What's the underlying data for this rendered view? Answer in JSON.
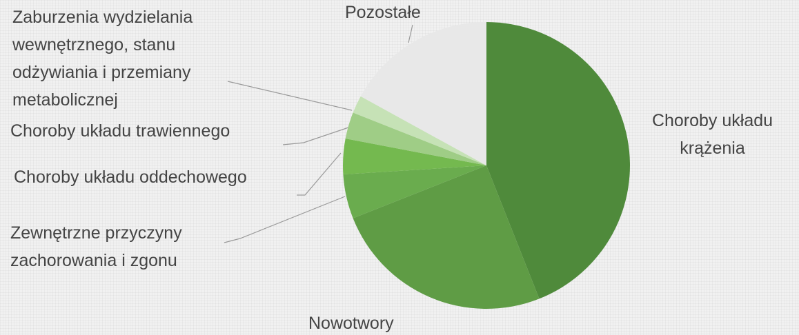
{
  "chart_data": {
    "type": "pie",
    "categories": [
      "Choroby układu krążenia",
      "Nowotwory",
      "Zewnętrzne przyczyny zachorowania i zgonu",
      "Choroby układu oddechowego",
      "Choroby układu trawiennego",
      "Zaburzenia wydzielania wewnętrznego, stanu odżywiania i przemiany metabolicznej",
      "Pozostałe"
    ],
    "values": [
      44,
      25,
      5,
      4,
      3,
      2,
      17
    ],
    "colors": [
      "#4f8a3b",
      "#5f9c45",
      "#6aac4e",
      "#74b94f",
      "#9fcd86",
      "#c6e2b6",
      "#e8e8e8"
    ]
  }
}
